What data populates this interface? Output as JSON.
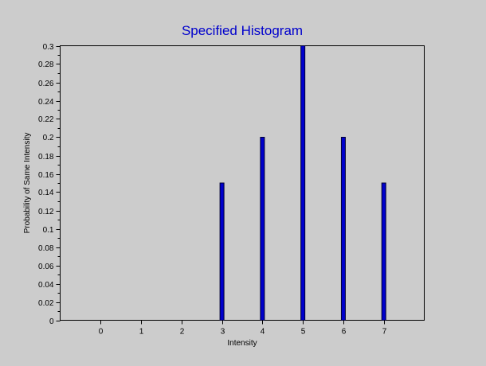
{
  "chart_data": {
    "type": "bar",
    "title": "Specified Histogram",
    "xlabel": "Intensity",
    "ylabel": "Probability of Same Intensity",
    "categories": [
      "0",
      "1",
      "2",
      "3",
      "4",
      "5",
      "6",
      "7"
    ],
    "x": [
      0,
      1,
      2,
      3,
      4,
      5,
      6,
      7
    ],
    "values": [
      0,
      0,
      0,
      0.15,
      0.2,
      0.3,
      0.2,
      0.15
    ],
    "xlim": [
      -1,
      8
    ],
    "ylim": [
      0,
      0.3
    ],
    "yticks": [
      "0",
      "0.02",
      "0.04",
      "0.06",
      "0.08",
      "0.1",
      "0.12",
      "0.14",
      "0.16",
      "0.18",
      "0.2",
      "0.22",
      "0.24",
      "0.26",
      "0.28",
      "0.3"
    ],
    "ytick_values": [
      0,
      0.02,
      0.04,
      0.06,
      0.08,
      0.1,
      0.12,
      0.14,
      0.16,
      0.18,
      0.2,
      0.22,
      0.24,
      0.26,
      0.28,
      0.3
    ],
    "grid": false,
    "legend": "none",
    "colors": {
      "background": "#cccccc",
      "plot_background": "#cccccc",
      "bar_fill": "#0000cc",
      "bar_stroke": "#000033",
      "title": "#0000cc",
      "axis": "#000000"
    }
  }
}
